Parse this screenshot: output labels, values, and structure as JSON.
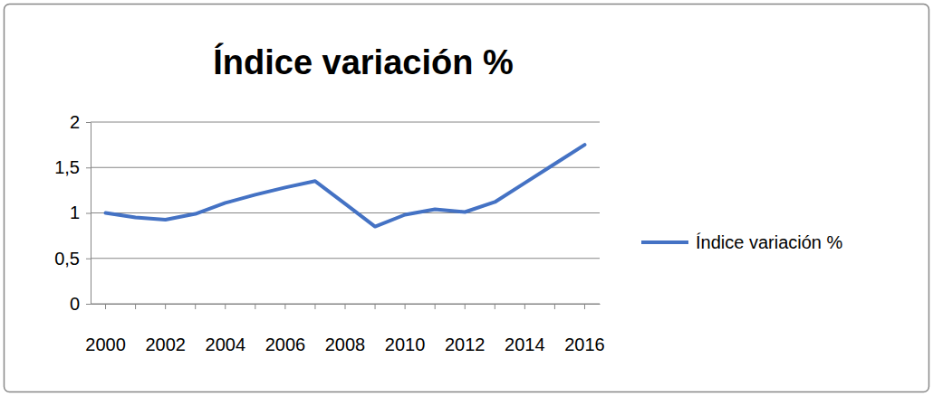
{
  "chart_data": {
    "type": "line",
    "title": "Índice variación %",
    "categories": [
      "2000",
      null,
      "2002",
      null,
      "2004",
      null,
      "2006",
      null,
      "2008",
      null,
      "2010",
      null,
      "2012",
      null,
      "2014",
      null,
      "2016"
    ],
    "series": [
      {
        "name": "Índice variación %",
        "color": "#4472c4",
        "values": [
          1.0,
          0.95,
          0.925,
          0.99,
          1.11,
          1.2,
          1.28,
          1.35,
          1.1,
          0.85,
          0.98,
          1.04,
          1.01,
          1.12,
          1.33,
          1.54,
          1.75
        ]
      }
    ],
    "ylim": [
      0,
      2
    ],
    "yticks": [
      0,
      {
        "value": 0.5,
        "label": "0,5"
      },
      1,
      {
        "value": 1.5,
        "label": "1,5"
      },
      2
    ],
    "grid": true,
    "legend": "right"
  }
}
